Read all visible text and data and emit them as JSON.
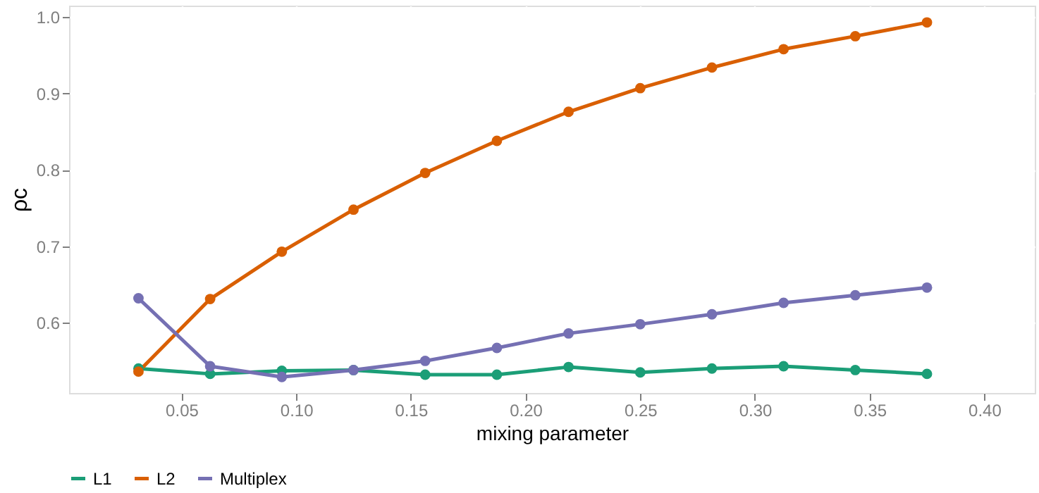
{
  "chart_data": {
    "type": "line",
    "xlabel": "mixing parameter",
    "ylabel": "ρc",
    "x": [
      0.03125,
      0.0625,
      0.09375,
      0.125,
      0.15625,
      0.1875,
      0.21875,
      0.25,
      0.28125,
      0.3125,
      0.34375,
      0.375
    ],
    "series": [
      {
        "name": "L1",
        "color": "#1b9e77",
        "values": [
          0.54,
          0.533,
          0.537,
          0.538,
          0.532,
          0.532,
          0.542,
          0.535,
          0.54,
          0.543,
          0.538,
          0.533
        ]
      },
      {
        "name": "L2",
        "color": "#d95f02",
        "values": [
          0.536,
          0.631,
          0.693,
          0.748,
          0.796,
          0.838,
          0.876,
          0.907,
          0.934,
          0.958,
          0.975,
          0.993
        ]
      },
      {
        "name": "Multiplex",
        "color": "#7570b3",
        "values": [
          0.632,
          0.543,
          0.529,
          0.538,
          0.55,
          0.567,
          0.586,
          0.598,
          0.611,
          0.626,
          0.636,
          0.646
        ]
      }
    ],
    "xlim": [
      0.001,
      0.422
    ],
    "xticks": [
      0.05,
      {
        "value": 0.1,
        "label": "0.10"
      },
      0.15,
      {
        "value": 0.2,
        "label": "0.20"
      },
      0.25,
      {
        "value": 0.3,
        "label": "0.30"
      },
      0.35,
      {
        "value": 0.4,
        "label": "0.40"
      }
    ],
    "ylim": [
      0.508,
      1.015
    ],
    "yticks": [
      0.6,
      0.7,
      0.8,
      0.9,
      {
        "value": 1.0,
        "label": "1.0"
      }
    ],
    "grid": true,
    "legend": "bottom",
    "marker": "circle",
    "line_style": "solid"
  }
}
